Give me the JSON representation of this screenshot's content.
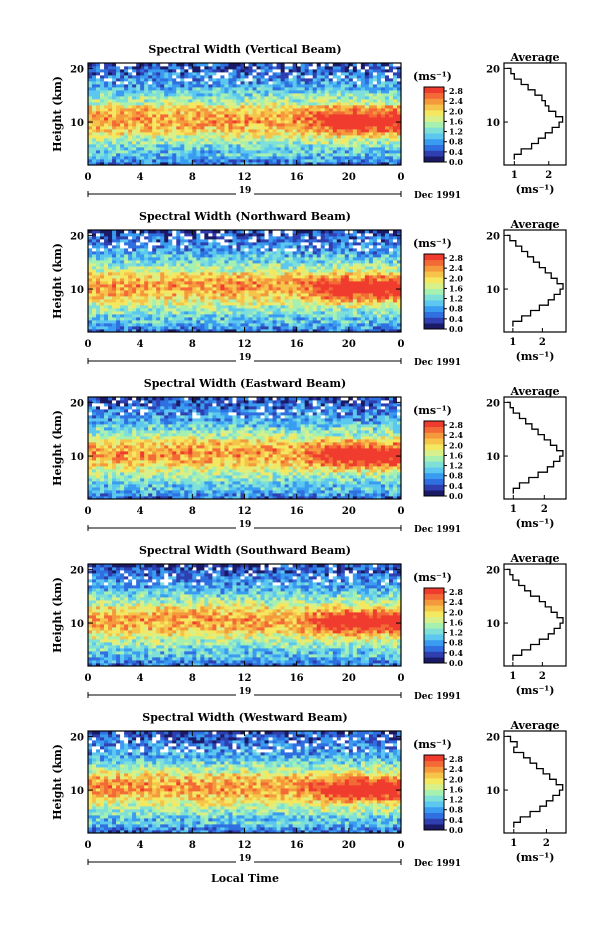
{
  "chart_data": [
    {
      "type": "heatmap",
      "title": "Spectral Width (Vertical Beam)",
      "ylabel": "Height (km)",
      "x_ticks": [
        "0",
        "4",
        "8",
        "12",
        "16",
        "20",
        "0"
      ],
      "y_ticks": [
        "10",
        "20"
      ],
      "xlim": [
        0,
        24
      ],
      "ylim": [
        2,
        21
      ],
      "day_marker": "19",
      "date_label": "Dec 1991",
      "colorbar": {
        "unit": "(ms⁻¹)",
        "ticks": [
          "2.8",
          "2.4",
          "2.0",
          "1.6",
          "1.2",
          "0.8",
          "0.4",
          "0.0"
        ],
        "range": [
          0,
          3.0
        ]
      },
      "profile": {
        "title": "Average",
        "xlabel": "(ms⁻¹)",
        "x_ticks": [
          "1",
          "2"
        ],
        "y_ticks": [
          "10",
          "20"
        ],
        "xlim": [
          0.7,
          2.5
        ],
        "ylim": [
          2,
          21
        ],
        "points": [
          [
            1.0,
            3
          ],
          [
            1.2,
            4
          ],
          [
            1.5,
            5
          ],
          [
            1.7,
            6
          ],
          [
            1.9,
            7
          ],
          [
            2.1,
            8
          ],
          [
            2.3,
            9
          ],
          [
            2.4,
            10
          ],
          [
            2.2,
            11
          ],
          [
            2.0,
            12
          ],
          [
            1.9,
            13
          ],
          [
            1.8,
            14
          ],
          [
            1.6,
            15
          ],
          [
            1.4,
            16
          ],
          [
            1.2,
            17
          ],
          [
            1.0,
            18
          ],
          [
            0.9,
            19
          ],
          [
            0.8,
            20
          ]
        ]
      }
    },
    {
      "type": "heatmap",
      "title": "Spectral Width (Northward Beam)",
      "ylabel": "Height (km)",
      "x_ticks": [
        "0",
        "4",
        "8",
        "12",
        "16",
        "20",
        "0"
      ],
      "y_ticks": [
        "10",
        "20"
      ],
      "xlim": [
        0,
        24
      ],
      "ylim": [
        2,
        21
      ],
      "day_marker": "19",
      "date_label": "Dec 1991",
      "colorbar": {
        "unit": "(ms⁻¹)",
        "ticks": [
          "2.8",
          "2.4",
          "2.0",
          "1.6",
          "1.2",
          "0.8",
          "0.4",
          "0.0"
        ],
        "range": [
          0,
          3.0
        ]
      },
      "profile": {
        "title": "Average",
        "xlabel": "(ms⁻¹)",
        "x_ticks": [
          "1",
          "2"
        ],
        "y_ticks": [
          "10",
          "20"
        ],
        "xlim": [
          0.7,
          2.8
        ],
        "ylim": [
          2,
          21
        ],
        "points": [
          [
            1.0,
            3
          ],
          [
            1.3,
            4
          ],
          [
            1.6,
            5
          ],
          [
            1.9,
            6
          ],
          [
            2.2,
            7
          ],
          [
            2.4,
            8
          ],
          [
            2.6,
            9
          ],
          [
            2.7,
            10
          ],
          [
            2.5,
            11
          ],
          [
            2.3,
            12
          ],
          [
            2.1,
            13
          ],
          [
            1.9,
            14
          ],
          [
            1.7,
            15
          ],
          [
            1.5,
            16
          ],
          [
            1.3,
            17
          ],
          [
            1.1,
            18
          ],
          [
            0.9,
            19
          ],
          [
            0.8,
            20
          ]
        ]
      }
    },
    {
      "type": "heatmap",
      "title": "Spectral Width (Eastward Beam)",
      "ylabel": "Height (km)",
      "x_ticks": [
        "0",
        "4",
        "8",
        "12",
        "16",
        "20",
        "0"
      ],
      "y_ticks": [
        "10",
        "20"
      ],
      "xlim": [
        0,
        24
      ],
      "ylim": [
        2,
        21
      ],
      "day_marker": "19",
      "date_label": "Dec 1991",
      "colorbar": {
        "unit": "(ms⁻¹)",
        "ticks": [
          "2.8",
          "2.4",
          "2.0",
          "1.6",
          "1.2",
          "0.8",
          "0.4",
          "0.0"
        ],
        "range": [
          0,
          3.0
        ]
      },
      "profile": {
        "title": "Average",
        "xlabel": "(ms⁻¹)",
        "x_ticks": [
          "1",
          "2"
        ],
        "y_ticks": [
          "10",
          "20"
        ],
        "xlim": [
          0.7,
          2.7
        ],
        "ylim": [
          2,
          21
        ],
        "points": [
          [
            1.0,
            3
          ],
          [
            1.2,
            4
          ],
          [
            1.5,
            5
          ],
          [
            1.8,
            6
          ],
          [
            2.1,
            7
          ],
          [
            2.3,
            8
          ],
          [
            2.5,
            9
          ],
          [
            2.6,
            10
          ],
          [
            2.4,
            11
          ],
          [
            2.2,
            12
          ],
          [
            2.0,
            13
          ],
          [
            1.8,
            14
          ],
          [
            1.6,
            15
          ],
          [
            1.4,
            16
          ],
          [
            1.2,
            17
          ],
          [
            1.0,
            18
          ],
          [
            0.9,
            19
          ],
          [
            0.8,
            20
          ]
        ]
      }
    },
    {
      "type": "heatmap",
      "title": "Spectral Width (Southward Beam)",
      "ylabel": "Height (km)",
      "x_ticks": [
        "0",
        "4",
        "8",
        "12",
        "16",
        "20",
        "0"
      ],
      "y_ticks": [
        "10",
        "20"
      ],
      "xlim": [
        0,
        24
      ],
      "ylim": [
        2,
        21
      ],
      "day_marker": "19",
      "date_label": "Dec 1991",
      "colorbar": {
        "unit": "(ms⁻¹)",
        "ticks": [
          "2.8",
          "2.4",
          "2.0",
          "1.6",
          "1.2",
          "0.8",
          "0.4",
          "0.0"
        ],
        "range": [
          0,
          3.0
        ]
      },
      "profile": {
        "title": "Average",
        "xlabel": "(ms⁻¹)",
        "x_ticks": [
          "1",
          "2"
        ],
        "y_ticks": [
          "10",
          "20"
        ],
        "xlim": [
          0.7,
          2.8
        ],
        "ylim": [
          2,
          21
        ],
        "points": [
          [
            1.0,
            3
          ],
          [
            1.3,
            4
          ],
          [
            1.6,
            5
          ],
          [
            1.9,
            6
          ],
          [
            2.2,
            7
          ],
          [
            2.4,
            8
          ],
          [
            2.6,
            9
          ],
          [
            2.7,
            10
          ],
          [
            2.5,
            11
          ],
          [
            2.3,
            12
          ],
          [
            2.1,
            13
          ],
          [
            1.9,
            14
          ],
          [
            1.6,
            15
          ],
          [
            1.4,
            16
          ],
          [
            1.2,
            17
          ],
          [
            1.0,
            18
          ],
          [
            0.9,
            19
          ],
          [
            0.8,
            20
          ]
        ]
      }
    },
    {
      "type": "heatmap",
      "title": "Spectral Width (Westward Beam)",
      "ylabel": "Height (km)",
      "xlabel": "Local Time",
      "x_ticks": [
        "0",
        "4",
        "8",
        "12",
        "16",
        "20",
        "0"
      ],
      "y_ticks": [
        "10",
        "20"
      ],
      "xlim": [
        0,
        24
      ],
      "ylim": [
        2,
        21
      ],
      "day_marker": "19",
      "date_label": "Dec 1991",
      "colorbar": {
        "unit": "(ms⁻¹)",
        "ticks": [
          "2.8",
          "2.4",
          "2.0",
          "1.6",
          "1.2",
          "0.8",
          "0.4",
          "0.0"
        ],
        "range": [
          0,
          3.0
        ]
      },
      "profile": {
        "title": "Average",
        "xlabel": "(ms⁻¹)",
        "x_ticks": [
          "1",
          "2"
        ],
        "y_ticks": [
          "10",
          "20"
        ],
        "xlim": [
          0.7,
          2.6
        ],
        "ylim": [
          2,
          21
        ],
        "points": [
          [
            1.0,
            3
          ],
          [
            1.2,
            4
          ],
          [
            1.5,
            5
          ],
          [
            1.8,
            6
          ],
          [
            2.0,
            7
          ],
          [
            2.2,
            8
          ],
          [
            2.4,
            9
          ],
          [
            2.5,
            10
          ],
          [
            2.3,
            11
          ],
          [
            2.1,
            12
          ],
          [
            1.9,
            13
          ],
          [
            1.7,
            14
          ],
          [
            1.5,
            15
          ],
          [
            1.3,
            16
          ],
          [
            1.0,
            17
          ],
          [
            1.1,
            18
          ],
          [
            0.9,
            19
          ],
          [
            0.8,
            20
          ]
        ]
      }
    }
  ],
  "colorbar_colors": [
    "#1a1a66",
    "#2f3fb0",
    "#2f6fe0",
    "#3a9cf0",
    "#5cc8f0",
    "#7fe0d8",
    "#a6f0b0",
    "#d8f08a",
    "#f4e860",
    "#f6c44a",
    "#f59a3c",
    "#f36a36",
    "#f03c2e"
  ]
}
